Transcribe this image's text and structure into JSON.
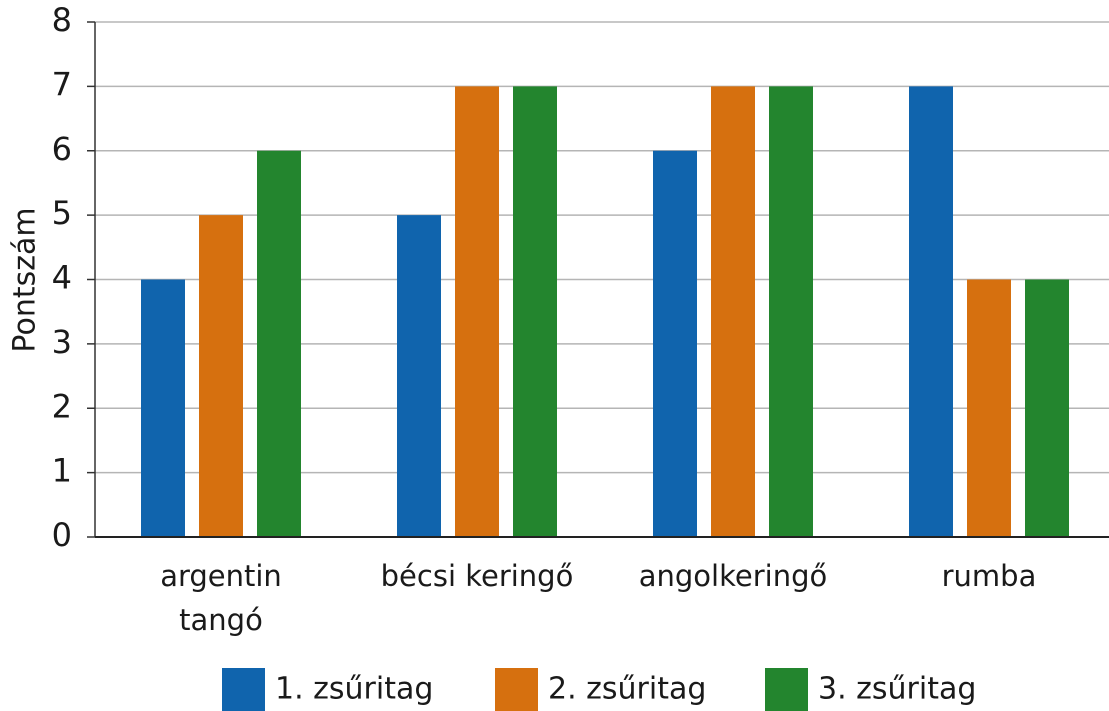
{
  "chart_data": {
    "type": "bar",
    "categories": [
      "argentin\ntangó",
      "bécsi keringő",
      "angolkeringő",
      "rumba"
    ],
    "series": [
      {
        "name": "1. zsűritag",
        "color": "#1064ad",
        "values": [
          4,
          5,
          6,
          7
        ]
      },
      {
        "name": "2. zsűritag",
        "color": "#d6700f",
        "values": [
          5,
          7,
          7,
          4
        ]
      },
      {
        "name": "3. zsűritag",
        "color": "#23852e",
        "values": [
          6,
          7,
          7,
          4
        ]
      }
    ],
    "y_label": "Pontszám",
    "ylim": [
      0,
      8
    ],
    "yticks": [
      0,
      1,
      2,
      3,
      4,
      5,
      6,
      7,
      8
    ],
    "grid": true
  }
}
